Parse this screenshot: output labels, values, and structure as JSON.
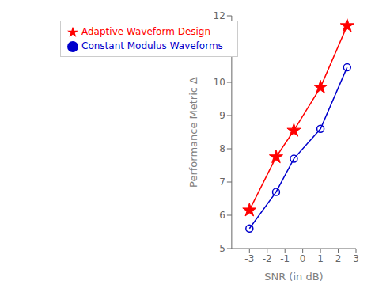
{
  "chart_data": {
    "type": "line",
    "xlabel": "SNR (in dB)",
    "ylabel": "Performance Metric Δ",
    "xlim": [
      -4,
      3
    ],
    "ylim": [
      5,
      12
    ],
    "xticks": [
      -3,
      -2,
      -1,
      0,
      1,
      2,
      3
    ],
    "yticks": [
      5,
      6,
      7,
      8,
      9,
      10,
      11,
      12
    ],
    "grid": false,
    "legend": "upper left",
    "series": [
      {
        "name": "Adaptive Waveform Design",
        "color": "#FF0000",
        "marker": "star",
        "x": [
          -3,
          -1.5,
          -0.5,
          1,
          2.5
        ],
        "values": [
          6.15,
          7.75,
          8.55,
          9.85,
          11.7
        ]
      },
      {
        "name": "Constant Modulus Waveforms",
        "color": "#0000CC",
        "marker": "circle",
        "x": [
          -3,
          -1.5,
          -0.5,
          1,
          2.5
        ],
        "values": [
          5.6,
          6.7,
          7.7,
          8.6,
          10.45
        ]
      }
    ]
  }
}
